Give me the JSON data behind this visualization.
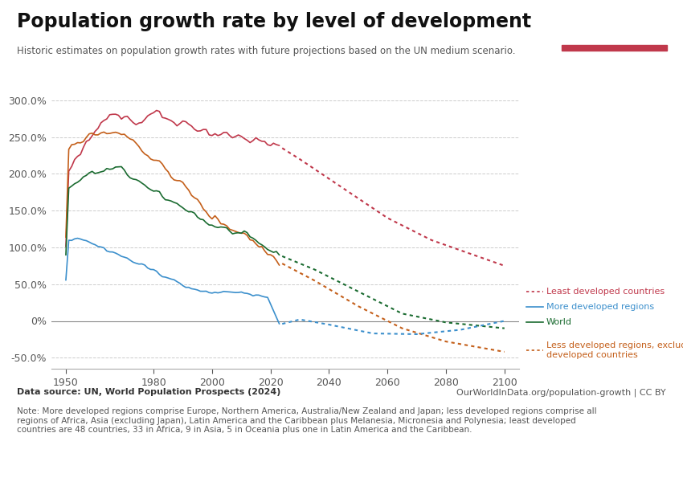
{
  "title": "Population growth rate by level of development",
  "subtitle": "Historic estimates on population growth rates with future projections based on the UN medium scenario.",
  "datasource": "Data source: UN, World Population Prospects (2024)",
  "url": "OurWorldInData.org/population-growth | CC BY",
  "note": "Note: More developed regions comprise Europe, Northern America, Australia/New Zealand and Japan; less developed regions comprise all\nregions of Africa, Asia (excluding Japan), Latin America and the Caribbean plus Melanesia, Micronesia and Polynesia; least developed\ncountries are 48 countries, 33 in Africa, 9 in Asia, 5 in Oceania plus one in Latin America and the Caribbean.",
  "xlim": [
    1945,
    2105
  ],
  "ylim": [
    -0.65,
    3.25
  ],
  "yticks": [
    -0.5,
    0.0,
    0.5,
    1.0,
    1.5,
    2.0,
    2.5,
    3.0
  ],
  "xticks": [
    1950,
    1980,
    2000,
    2020,
    2040,
    2060,
    2080,
    2100
  ],
  "colors": {
    "least_developed": "#c0384b",
    "less_developed": "#c45f1a",
    "world": "#1a6b30",
    "more_developed": "#3b8fcc"
  }
}
